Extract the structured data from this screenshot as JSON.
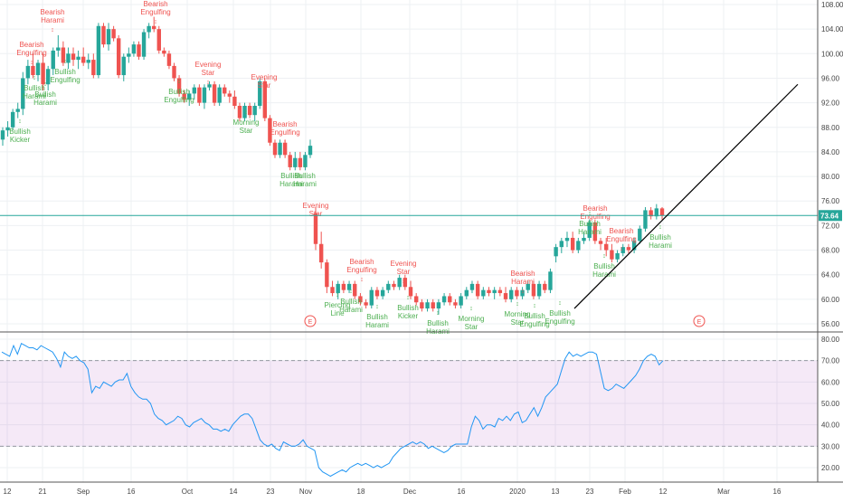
{
  "colors": {
    "up": "#26a69a",
    "down": "#ef5350",
    "bull_label": "#26a69a",
    "bear_label": "#ef5350",
    "bull_label_text": "#4caf50",
    "rsi_line": "#2196f3",
    "rsi_band": "#9c27b0",
    "grid": "#eef0f3",
    "axis_text": "#787b86",
    "hline": "#26a69a",
    "trendline": "#000000"
  },
  "price_axis": {
    "ticks": [
      "108.00",
      "104.00",
      "100.00",
      "96.00",
      "92.00",
      "88.00",
      "84.00",
      "80.00",
      "76.00",
      "72.00",
      "68.00",
      "64.00",
      "60.00",
      "56.00"
    ],
    "last_price_label": "73.64"
  },
  "rsi_axis": {
    "ticks": [
      "80.00",
      "70.00",
      "60.00",
      "50.00",
      "40.00",
      "30.00",
      "20.00"
    ]
  },
  "time_axis": {
    "ticks": [
      "12",
      "21",
      "Sep",
      "16",
      "Oct",
      "14",
      "23",
      "Nov",
      "18",
      "Dec",
      "16",
      "2020",
      "13",
      "23",
      "Feb",
      "12",
      "Mar",
      "16"
    ]
  },
  "events": [
    "E",
    "E"
  ],
  "pattern_labels": {
    "bull": [
      {
        "t": "Bullish Kicker"
      },
      {
        "t": "Bullish Harami"
      },
      {
        "t": "Bullish Harami"
      },
      {
        "t": "Bullish Engulfing"
      },
      {
        "t": "Bullish Engulfing"
      },
      {
        "t": "Morning Star"
      },
      {
        "t": "Bullish Harami"
      },
      {
        "t": "Bullish Harami"
      },
      {
        "t": "Piercing Line"
      },
      {
        "t": "Bullish Harami"
      },
      {
        "t": "Bullish Harami"
      },
      {
        "t": "Bullish Kicker"
      },
      {
        "t": "Bullish Harami"
      },
      {
        "t": "Morning Star"
      },
      {
        "t": "Morning Star"
      },
      {
        "t": "Bullish Engulfing"
      },
      {
        "t": "Bullish Engulfing"
      },
      {
        "t": "Bullish Harami"
      },
      {
        "t": "Bullish Harami"
      },
      {
        "t": "Bullish Harami"
      }
    ],
    "bear": [
      {
        "t": "Bearish Engulfing"
      },
      {
        "t": "Bearish Harami"
      },
      {
        "t": "Bearish Engulfing"
      },
      {
        "t": "Evening Star"
      },
      {
        "t": "Evening Star"
      },
      {
        "t": "Bearish Engulfing"
      },
      {
        "t": "Evening Star"
      },
      {
        "t": "Bearish Engulfing"
      },
      {
        "t": "Evening Star"
      },
      {
        "t": "Bearish Harami"
      },
      {
        "t": "Bearish Engulfing"
      },
      {
        "t": "Bearish Engulfing"
      }
    ]
  },
  "chart_data": [
    {
      "type": "candlestick",
      "title": "",
      "ylim": [
        55,
        109
      ],
      "candles": [
        [
          86,
          88,
          85,
          87.5
        ],
        [
          87.5,
          89,
          86.5,
          88
        ],
        [
          88,
          91,
          87.5,
          90.5
        ],
        [
          90.5,
          92,
          89.5,
          91
        ],
        [
          91,
          97,
          90,
          96
        ],
        [
          96,
          99,
          95,
          98
        ],
        [
          98,
          100,
          96,
          96.5
        ],
        [
          96.5,
          99,
          95.5,
          98.5
        ],
        [
          98.5,
          100,
          94,
          95
        ],
        [
          95,
          98,
          94,
          97.5
        ],
        [
          97.5,
          101,
          96.5,
          100.5
        ],
        [
          100.5,
          103,
          99.5,
          101
        ],
        [
          101,
          102,
          98,
          98.5
        ],
        [
          98.5,
          101,
          97.5,
          100
        ],
        [
          100,
          101,
          98,
          99
        ],
        [
          99,
          100.5,
          97.5,
          99.5
        ],
        [
          99.5,
          101,
          98,
          98.5
        ],
        [
          98.5,
          100,
          97.5,
          99
        ],
        [
          99,
          100,
          96,
          96.5
        ],
        [
          96.5,
          105,
          96,
          104.5
        ],
        [
          104.5,
          105,
          101,
          101.5
        ],
        [
          101.5,
          105,
          100.5,
          104
        ],
        [
          104,
          104.5,
          102,
          102.5
        ],
        [
          102.5,
          103,
          96,
          96.5
        ],
        [
          96.5,
          100,
          95.5,
          99.5
        ],
        [
          99.5,
          101,
          98.5,
          100
        ],
        [
          100,
          102,
          99.5,
          101.5
        ],
        [
          101.5,
          102,
          99,
          99.5
        ],
        [
          99.5,
          104,
          99,
          103.5
        ],
        [
          103.5,
          105,
          102.5,
          104.5
        ],
        [
          104.5,
          106,
          103.5,
          104
        ],
        [
          104,
          104.5,
          100,
          100.5
        ],
        [
          100.5,
          101,
          99.5,
          100
        ],
        [
          100,
          100.5,
          97.5,
          98
        ],
        [
          98,
          98.5,
          95.5,
          96
        ],
        [
          96,
          96.5,
          93,
          93.5
        ],
        [
          93.5,
          94,
          92,
          92.5
        ],
        [
          92.5,
          94,
          91.5,
          93.5
        ],
        [
          93.5,
          95,
          92.5,
          94.5
        ],
        [
          94.5,
          95,
          91.5,
          92
        ],
        [
          92,
          95,
          91,
          94.5
        ],
        [
          94.5,
          95.5,
          94,
          95
        ],
        [
          95,
          95.5,
          91.5,
          92
        ],
        [
          92,
          95,
          91.5,
          94.5
        ],
        [
          94.5,
          95,
          93,
          93.5
        ],
        [
          93.5,
          94,
          92,
          93
        ],
        [
          93,
          94,
          91,
          91.5
        ],
        [
          91.5,
          92,
          89,
          89.5
        ],
        [
          89.5,
          92,
          89,
          91.5
        ],
        [
          91.5,
          92,
          89.5,
          90
        ],
        [
          90,
          92,
          89,
          91.5
        ],
        [
          91.5,
          96,
          91,
          95.5
        ],
        [
          95.5,
          96,
          89,
          89.5
        ],
        [
          89.5,
          90,
          85,
          85.5
        ],
        [
          85.5,
          86,
          83,
          83.5
        ],
        [
          83.5,
          86,
          83,
          85.5
        ],
        [
          85.5,
          86,
          83,
          83.5
        ],
        [
          83.5,
          84,
          81,
          81.5
        ],
        [
          81.5,
          84,
          81,
          83
        ],
        [
          83,
          84,
          81,
          81.5
        ],
        [
          81.5,
          84,
          81,
          83.5
        ],
        [
          83.5,
          86,
          83,
          85
        ],
        [
          74,
          75,
          68,
          69
        ],
        [
          69,
          71,
          65,
          66
        ],
        [
          66,
          66.5,
          61,
          62
        ],
        [
          62,
          63,
          60.5,
          61
        ],
        [
          61,
          63,
          60,
          62.5
        ],
        [
          62.5,
          63,
          61,
          61.5
        ],
        [
          61.5,
          63,
          61,
          62.5
        ],
        [
          62.5,
          63,
          60,
          60.5
        ],
        [
          60.5,
          61,
          59,
          59.5
        ],
        [
          59.5,
          60,
          58.5,
          59
        ],
        [
          59,
          62,
          58.5,
          61.5
        ],
        [
          61.5,
          62,
          60,
          60.5
        ],
        [
          60.5,
          62,
          60,
          61.5
        ],
        [
          61.5,
          63,
          61,
          62.5
        ],
        [
          62.5,
          63,
          61.5,
          62
        ],
        [
          62,
          64,
          61.5,
          63.5
        ],
        [
          63.5,
          64,
          61.5,
          62
        ],
        [
          62,
          63,
          60,
          60.5
        ],
        [
          60.5,
          61,
          59,
          59.5
        ],
        [
          59.5,
          60,
          58,
          58.5
        ],
        [
          58.5,
          60,
          58,
          59.5
        ],
        [
          59.5,
          60,
          58,
          58.5
        ],
        [
          58.5,
          60,
          57.5,
          59.5
        ],
        [
          59.5,
          61,
          59,
          60.5
        ],
        [
          60.5,
          61,
          59,
          59.5
        ],
        [
          59.5,
          60,
          58.5,
          59
        ],
        [
          59,
          61,
          58.5,
          60.5
        ],
        [
          60.5,
          62,
          60,
          61.5
        ],
        [
          61.5,
          63,
          61,
          62.5
        ],
        [
          62.5,
          63,
          60,
          60.5
        ],
        [
          60.5,
          62,
          60,
          61.5
        ],
        [
          61.5,
          62,
          60.5,
          61
        ],
        [
          61,
          62,
          60,
          61.5
        ],
        [
          61.5,
          62,
          60.5,
          61
        ],
        [
          61,
          62,
          59.5,
          60
        ],
        [
          60,
          62,
          59.5,
          61.5
        ],
        [
          61.5,
          62,
          60,
          60.5
        ],
        [
          60.5,
          62,
          60,
          61.5
        ],
        [
          61.5,
          63,
          61,
          62.5
        ],
        [
          62.5,
          63,
          60,
          60.5
        ],
        [
          60.5,
          63,
          60,
          62.5
        ],
        [
          62.5,
          63,
          61,
          61.5
        ],
        [
          61.5,
          65,
          61,
          64.5
        ],
        [
          67,
          69,
          66,
          68.5
        ],
        [
          68.5,
          70,
          67.5,
          69.5
        ],
        [
          69.5,
          71,
          68.5,
          70
        ],
        [
          70,
          71,
          67.5,
          68
        ],
        [
          68,
          70,
          67.5,
          69.5
        ],
        [
          69.5,
          71,
          69,
          70
        ],
        [
          70,
          73,
          69.5,
          72.5
        ],
        [
          72.5,
          73,
          69,
          69.5
        ],
        [
          69.5,
          70,
          68,
          69
        ],
        [
          69,
          70,
          67,
          68
        ],
        [
          68,
          69,
          66,
          66.5
        ],
        [
          66.5,
          68,
          66,
          67.5
        ],
        [
          67.5,
          69,
          67,
          68.5
        ],
        [
          68.5,
          69,
          67.5,
          68
        ],
        [
          68,
          70,
          67.5,
          69.5
        ],
        [
          69.5,
          72,
          69,
          71.5
        ],
        [
          71.5,
          75,
          71,
          74.5
        ],
        [
          74.5,
          75,
          73,
          73.5
        ],
        [
          73.5,
          75.5,
          73,
          74.8
        ],
        [
          74.8,
          75,
          73,
          73.6
        ]
      ]
    },
    {
      "type": "line",
      "title": "",
      "ylabel": "",
      "ylim": [
        15,
        82
      ],
      "bands": [
        30,
        70
      ],
      "values": [
        74,
        73,
        72,
        77,
        73,
        78,
        77,
        76,
        76,
        75,
        77,
        76,
        75,
        74,
        71,
        67,
        74,
        72,
        71,
        72,
        70,
        69,
        66,
        55,
        58,
        57,
        60,
        59,
        58,
        60,
        61,
        61,
        64,
        58,
        55,
        53,
        52,
        52,
        50,
        45,
        43,
        42,
        40,
        41,
        42,
        44,
        43,
        40,
        39,
        41,
        42,
        43,
        41,
        40,
        38,
        38,
        37,
        38,
        37,
        40,
        42,
        44,
        45,
        45,
        43,
        38,
        33,
        31,
        30,
        31,
        29,
        28,
        32,
        31,
        30,
        30,
        31,
        33,
        30,
        29,
        28,
        20,
        18,
        17,
        16,
        17,
        18,
        19,
        18,
        20,
        21,
        22,
        21,
        22,
        21,
        20,
        21,
        20,
        21,
        22,
        25,
        27,
        29,
        30,
        31,
        32,
        31,
        32,
        31,
        29,
        30,
        29,
        28,
        27,
        28,
        30,
        31,
        31,
        31,
        31,
        39,
        44,
        42,
        38,
        40,
        40,
        39,
        43,
        42,
        44,
        42,
        45,
        46,
        41,
        42,
        45,
        48,
        44,
        48,
        53,
        55,
        57,
        59,
        65,
        71,
        74,
        72,
        73,
        72,
        73,
        74,
        74,
        73,
        65,
        57,
        56,
        57,
        59,
        58,
        57,
        59,
        61,
        63,
        66,
        70,
        72,
        73,
        72,
        68,
        70
      ]
    },
    {
      "type": "annotation",
      "trendline_dates": [
        "Jan 14",
        "Mar 12"
      ],
      "trendline_values": [
        58.5,
        95
      ],
      "horizontal_line": 73.64
    }
  ]
}
